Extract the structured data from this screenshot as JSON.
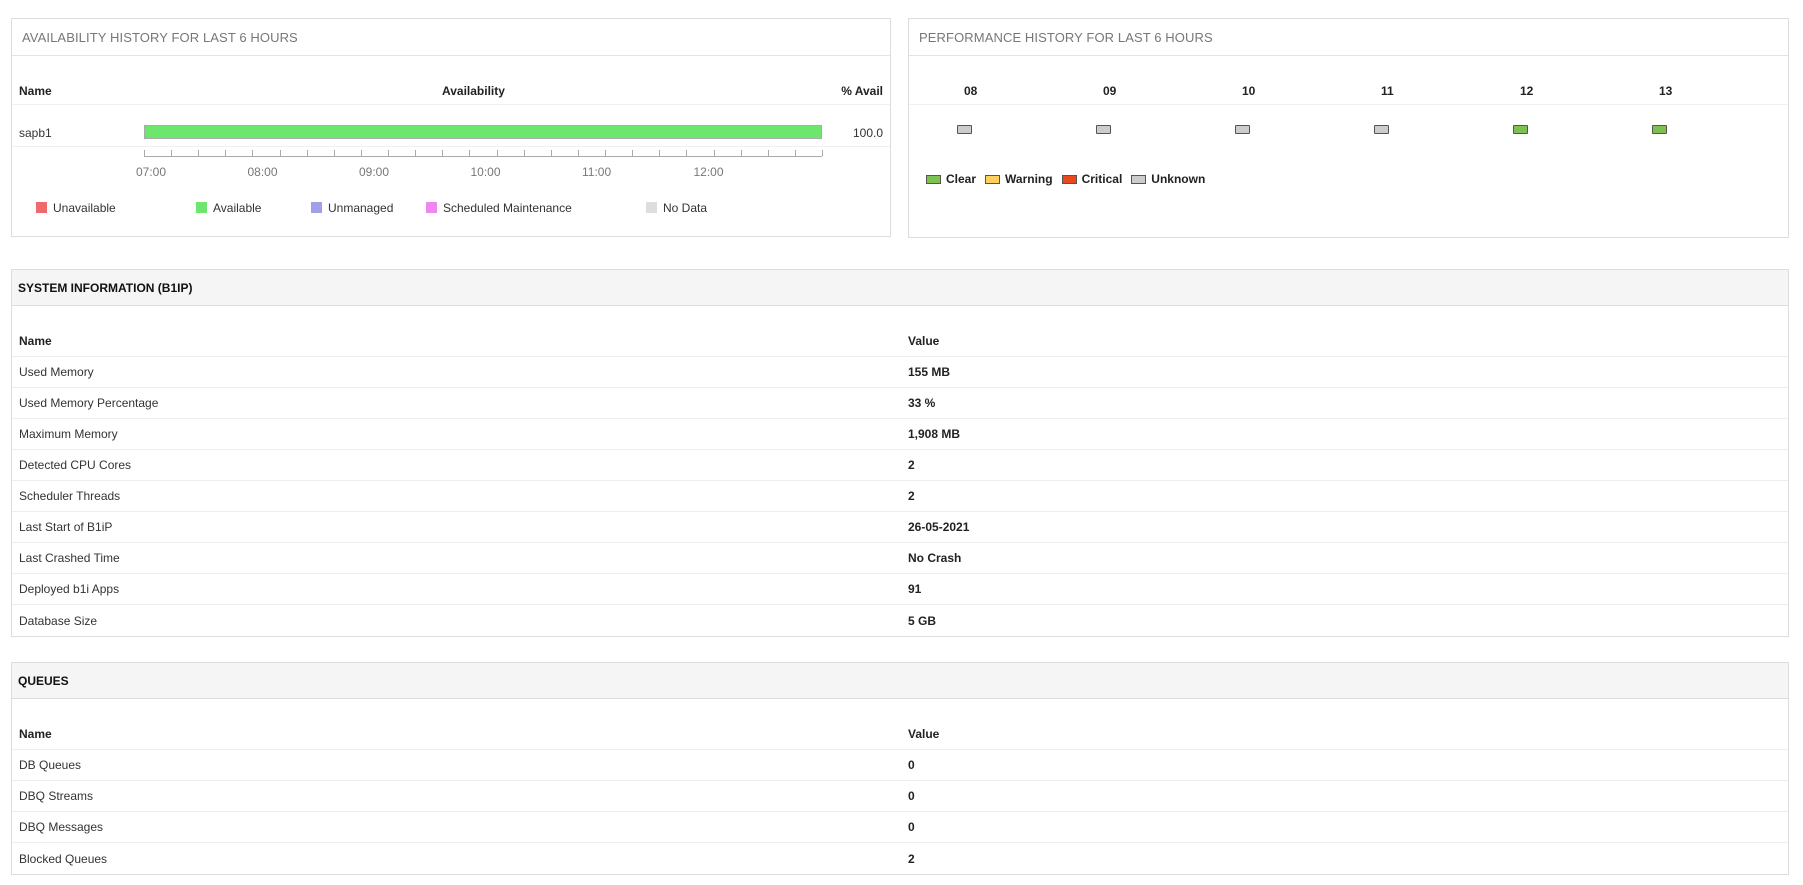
{
  "availability": {
    "title": "AVAILABILITY HISTORY FOR LAST 6 HOURS",
    "col_name": "Name",
    "col_avail": "Availability",
    "col_pct": "% Avail",
    "row": {
      "name": "sapb1",
      "pct": "100.0",
      "available_fraction": 1.0,
      "bar_color": "#6ce66c"
    },
    "ticks": [
      "07:00",
      "08:00",
      "09:00",
      "10:00",
      "11:00",
      "12:00"
    ],
    "legend": [
      {
        "label": "Unavailable",
        "color": "#f06a6a"
      },
      {
        "label": "Available",
        "color": "#6ce66c"
      },
      {
        "label": "Unmanaged",
        "color": "#a0a0e8"
      },
      {
        "label": "Scheduled Maintenance",
        "color": "#ee88ee"
      },
      {
        "label": "No Data",
        "color": "#dddddd"
      }
    ]
  },
  "performance": {
    "title": "PERFORMANCE HISTORY FOR LAST 6 HOURS",
    "hours": [
      {
        "label": "08",
        "status": "Unknown"
      },
      {
        "label": "09",
        "status": "Unknown"
      },
      {
        "label": "10",
        "status": "Unknown"
      },
      {
        "label": "11",
        "status": "Unknown"
      },
      {
        "label": "12",
        "status": "Clear"
      },
      {
        "label": "13",
        "status": "Clear"
      }
    ],
    "legend": [
      {
        "label": "Clear",
        "color": "#7dc150"
      },
      {
        "label": "Warning",
        "color": "#ffd060"
      },
      {
        "label": "Critical",
        "color": "#e84a1e"
      },
      {
        "label": "Unknown",
        "color": "#cccccc"
      }
    ]
  },
  "system": {
    "title": "SYSTEM INFORMATION (B1IP)",
    "col_name": "Name",
    "col_value": "Value",
    "rows": [
      {
        "name": "Used Memory",
        "value": "155 MB"
      },
      {
        "name": "Used Memory Percentage",
        "value": "33 %"
      },
      {
        "name": "Maximum Memory",
        "value": "1,908 MB"
      },
      {
        "name": "Detected CPU Cores",
        "value": "2"
      },
      {
        "name": "Scheduler Threads",
        "value": "2"
      },
      {
        "name": "Last Start of B1iP",
        "value": "26-05-2021"
      },
      {
        "name": "Last Crashed Time",
        "value": "No Crash"
      },
      {
        "name": "Deployed b1i Apps",
        "value": "91"
      },
      {
        "name": "Database Size",
        "value": "5 GB"
      }
    ]
  },
  "queues": {
    "title": "QUEUES",
    "col_name": "Name",
    "col_value": "Value",
    "rows": [
      {
        "name": "DB Queues",
        "value": "0"
      },
      {
        "name": "DBQ Streams",
        "value": "0"
      },
      {
        "name": "DBQ Messages",
        "value": "0"
      },
      {
        "name": "Blocked Queues",
        "value": "2"
      }
    ]
  }
}
